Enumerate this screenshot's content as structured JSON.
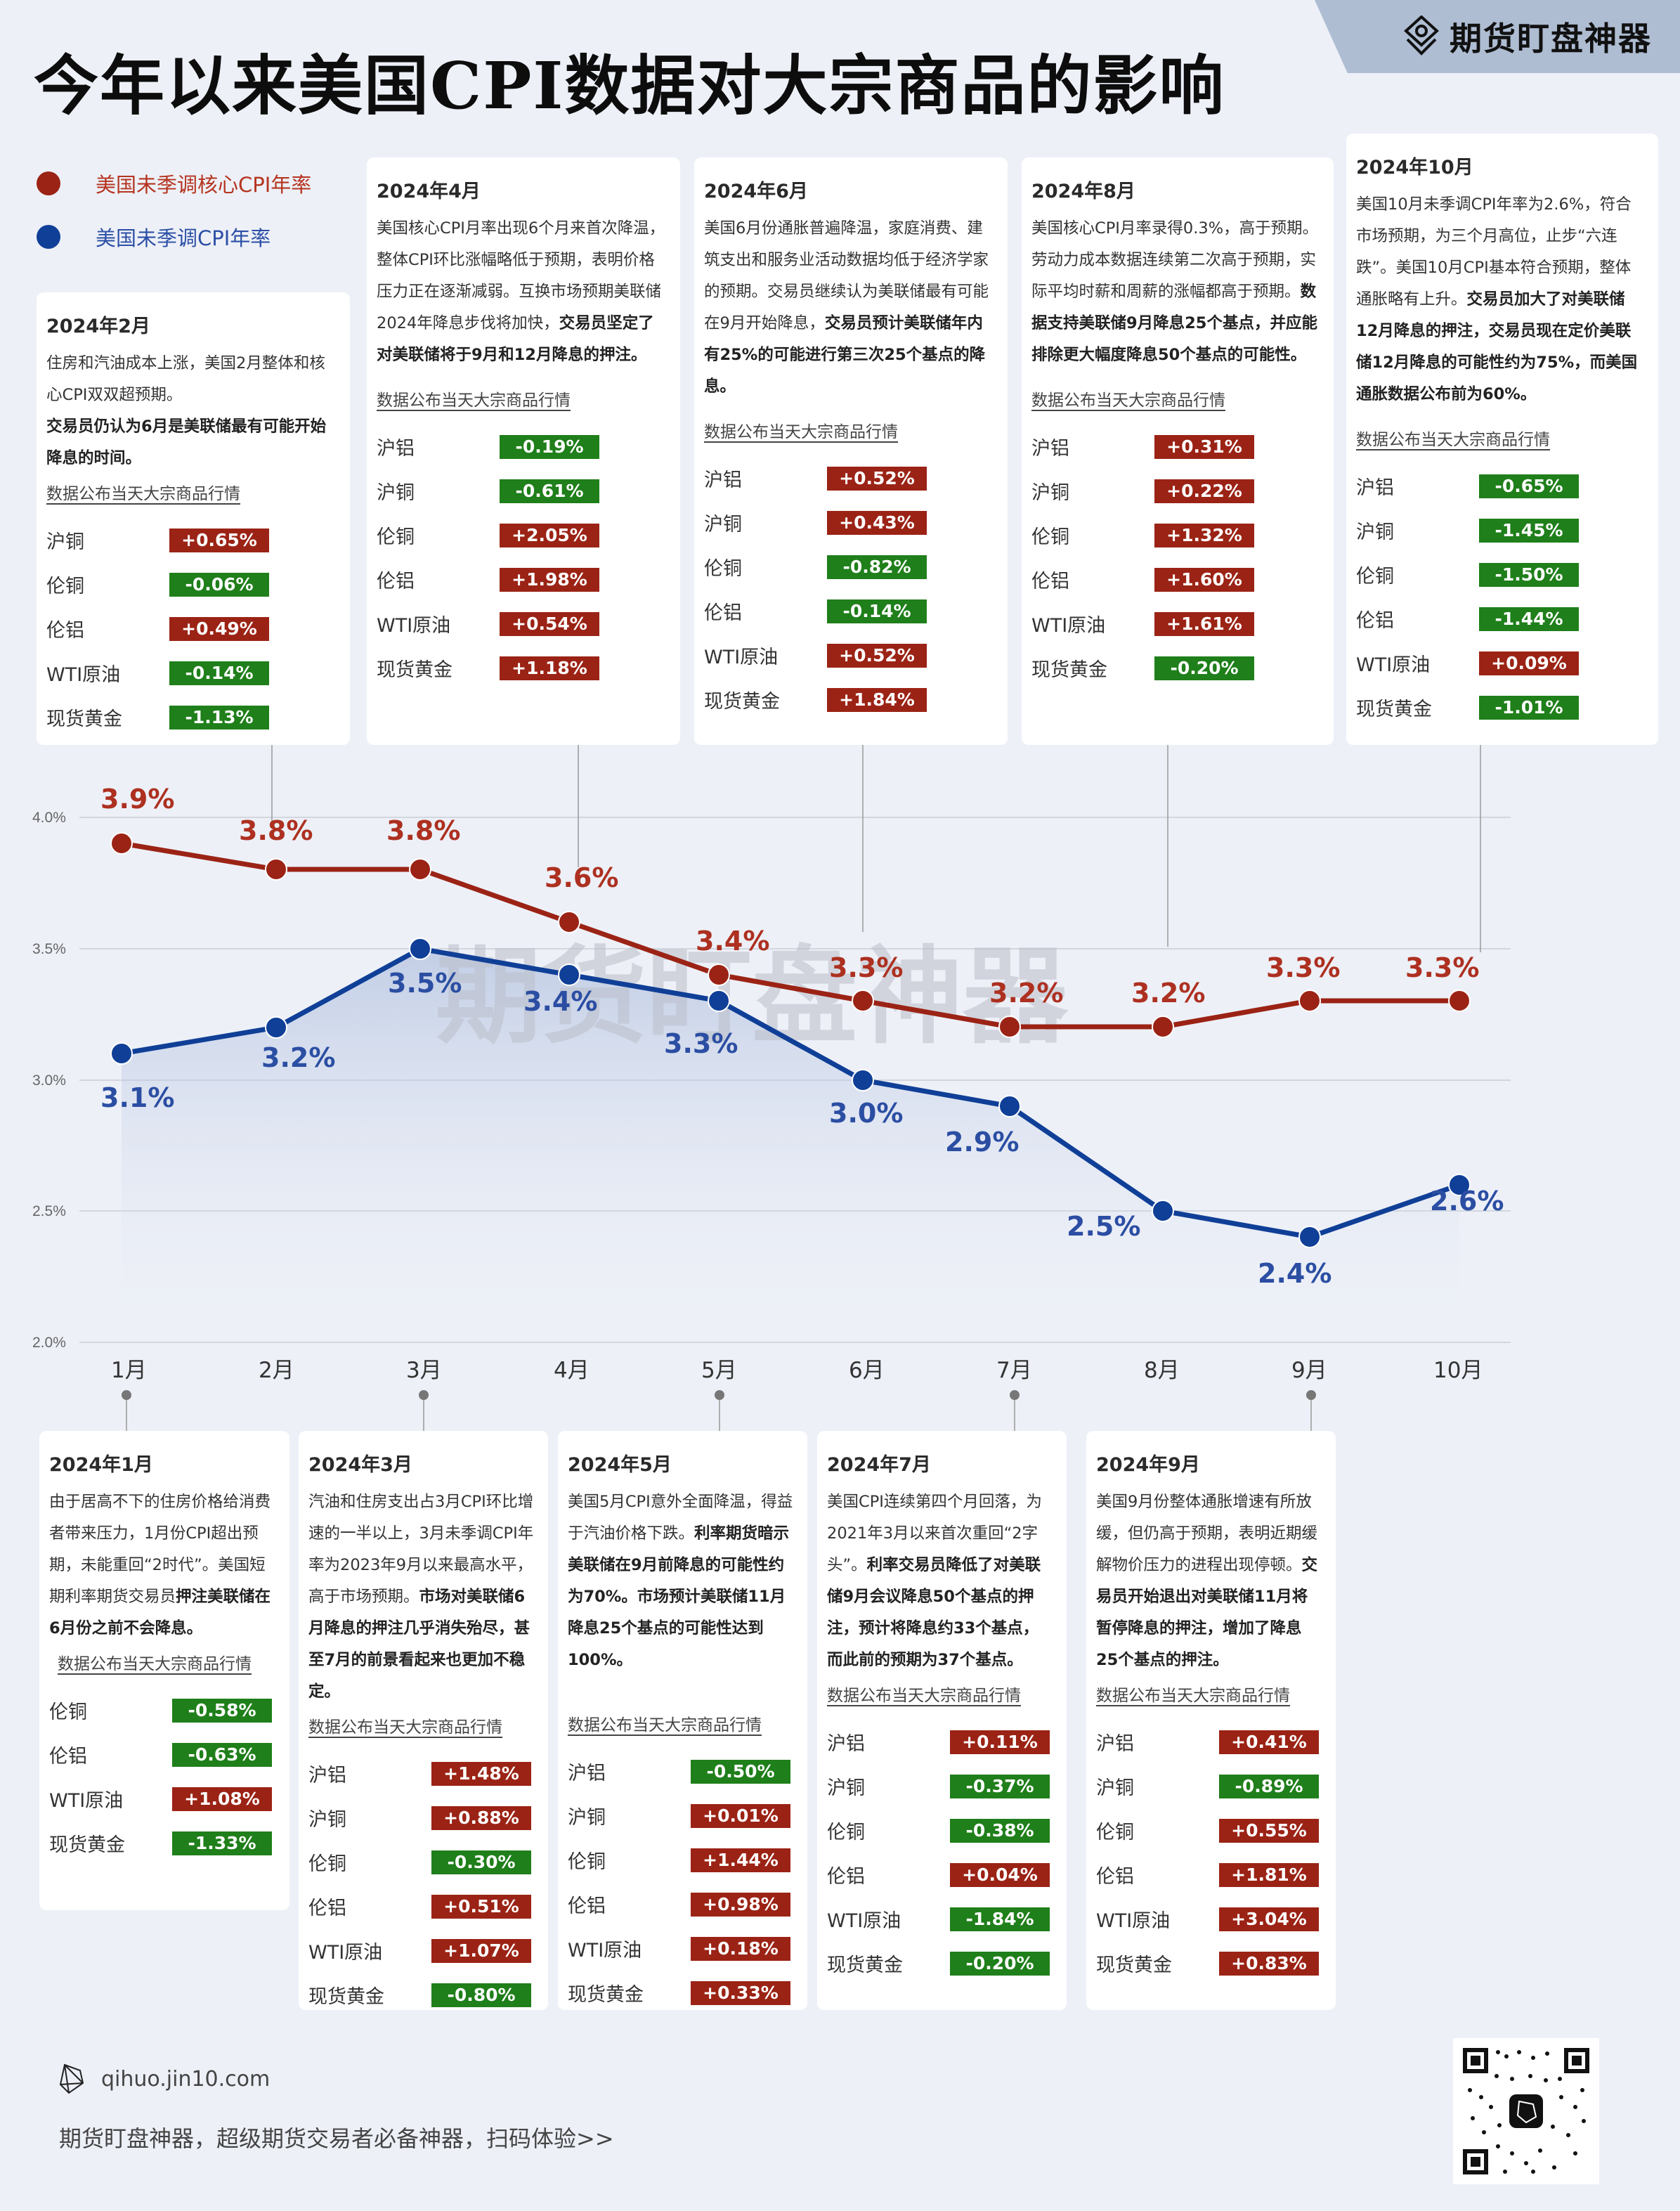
{
  "header": {
    "title": "今年以来美国CPI数据对大宗商品的影响",
    "brand": "期货盯盘神器"
  },
  "legend": [
    {
      "label": "美国未季调核心CPI年率",
      "color": "#9b2315"
    },
    {
      "label": "美国未季调CPI年率",
      "color": "#0f3f97"
    }
  ],
  "colors": {
    "up": "#9b2315",
    "down": "#1f7f1a",
    "core": "#9b2315",
    "headline": "#0f3f97"
  },
  "section_label": "数据公布当天大宗商品行情",
  "cards": {
    "jan": {
      "title": "2024年1月",
      "text": "由于居高不下的住房价格给消费者带来压力，1月份CPI超出预期，未能重回“2时代”。美国短期利率期货交易员",
      "bold": "押注美联储在6月份之前不会降息。",
      "rows": [
        {
          "name": "伦铜",
          "value": "-0.58%"
        },
        {
          "name": "伦铝",
          "value": "-0.63%"
        },
        {
          "name": "WTI原油",
          "value": "+1.08%"
        },
        {
          "name": "现货黄金",
          "value": "-1.33%"
        }
      ]
    },
    "feb": {
      "title": "2024年2月",
      "text": "住房和汽油成本上涨，美国2月整体和核心CPI双双超预期。",
      "bold": "交易员仍认为6月是美联储最有可能开始降息的时间。",
      "rows": [
        {
          "name": "沪铜",
          "value": "+0.65%",
          "trend": "down"
        },
        {
          "name": "伦铜",
          "value": "-0.06%"
        },
        {
          "name": "伦铝",
          "value": "+0.49%"
        },
        {
          "name": "WTI原油",
          "value": "-0.14%"
        },
        {
          "name": "现货黄金",
          "value": "-1.13%"
        }
      ]
    },
    "mar": {
      "title": "2024年3月",
      "text": "汽油和住房支出占3月CPI环比增速的一半以上，3月未季调CPI年率为2023年9月以来最高水平，高于市场预期。",
      "bold": "市场对美联储6月降息的押注几乎消失殆尽，甚至7月的前景看起来也更加不稳定。",
      "rows": [
        {
          "name": "沪铝",
          "value": "+1.48%"
        },
        {
          "name": "沪铜",
          "value": "+0.88%"
        },
        {
          "name": "伦铜",
          "value": "-0.30%"
        },
        {
          "name": "伦铝",
          "value": "+0.51%"
        },
        {
          "name": "WTI原油",
          "value": "+1.07%"
        },
        {
          "name": "现货黄金",
          "value": "-0.80%"
        }
      ]
    },
    "apr": {
      "title": "2024年4月",
      "text": "美国核心CPI月率出现6个月来首次降温，整体CPI环比涨幅略低于预期，表明价格压力正在逐渐减弱。互换市场预期美联储2024年降息步伐将加快，",
      "bold": "交易员坚定了对美联储将于9月和12月降息的押注。",
      "rows": [
        {
          "name": "沪铝",
          "value": "-0.19%"
        },
        {
          "name": "沪铜",
          "value": "-0.61%"
        },
        {
          "name": "伦铜",
          "value": "+2.05%"
        },
        {
          "name": "伦铝",
          "value": "+1.98%"
        },
        {
          "name": "WTI原油",
          "value": "+0.54%"
        },
        {
          "name": "现货黄金",
          "value": "+1.18%"
        }
      ]
    },
    "may": {
      "title": "2024年5月",
      "text": "美国5月CPI意外全面降温，得益于汽油价格下跌。",
      "bold": "利率期货暗示美联储在9月前降息的可能性约为70%。市场预计美联储11月降息25个基点的可能性达到100%。",
      "rows": [
        {
          "name": "沪铝",
          "value": "-0.50%"
        },
        {
          "name": "沪铜",
          "value": "+0.01%"
        },
        {
          "name": "伦铜",
          "value": "+1.44%"
        },
        {
          "name": "伦铝",
          "value": "+0.98%"
        },
        {
          "name": "WTI原油",
          "value": "+0.18%"
        },
        {
          "name": "现货黄金",
          "value": "+0.33%"
        }
      ]
    },
    "jun": {
      "title": "2024年6月",
      "text": "美国6月份通胀普遍降温，家庭消费、建筑支出和服务业活动数据均低于经济学家的预期。交易员继续认为美联储最有可能在9月开始降息，",
      "bold": "交易员预计美联储年内有25%的可能进行第三次25个基点的降息。",
      "rows": [
        {
          "name": "沪铝",
          "value": "+0.52%"
        },
        {
          "name": "沪铜",
          "value": "+0.43%"
        },
        {
          "name": "伦铜",
          "value": "-0.82%"
        },
        {
          "name": "伦铝",
          "value": "-0.14%"
        },
        {
          "name": "WTI原油",
          "value": "+0.52%"
        },
        {
          "name": "现货黄金",
          "value": "+1.84%"
        }
      ]
    },
    "jul": {
      "title": "2024年7月",
      "text": "美国CPI连续第四个月回落，为2021年3月以来首次重回“2字头”。",
      "bold": "利率交易员降低了对美联储9月会议降息50个基点的押注，预计将降息约33个基点，而此前的预期为37个基点。",
      "rows": [
        {
          "name": "沪铝",
          "value": "+0.11%"
        },
        {
          "name": "沪铜",
          "value": "-0.37%"
        },
        {
          "name": "伦铜",
          "value": "-0.38%"
        },
        {
          "name": "伦铝",
          "value": "+0.04%"
        },
        {
          "name": "WTI原油",
          "value": "-1.84%"
        },
        {
          "name": "现货黄金",
          "value": "-0.20%"
        }
      ]
    },
    "aug": {
      "title": "2024年8月",
      "text": "美国核心CPI月率录得0.3%，高于预期。劳动力成本数据连续第二次高于预期，实际平均时薪和周薪的涨幅都高于预期。",
      "bold": "数据支持美联储9月降息25个基点，并应能排除更大幅度降息50个基点的可能性。",
      "rows": [
        {
          "name": "沪铝",
          "value": "+0.31%"
        },
        {
          "name": "沪铜",
          "value": "+0.22%"
        },
        {
          "name": "伦铜",
          "value": "+1.32%"
        },
        {
          "name": "伦铝",
          "value": "+1.60%"
        },
        {
          "name": "WTI原油",
          "value": "+1.61%"
        },
        {
          "name": "现货黄金",
          "value": "-0.20%"
        }
      ]
    },
    "sep": {
      "title": "2024年9月",
      "text": "美国9月份整体通胀增速有所放缓，但仍高于预期，表明近期缓解物价压力的进程出现停顿。",
      "bold": "交易员开始退出对美联储11月将暂停降息的押注，增加了降息25个基点的押注。",
      "rows": [
        {
          "name": "沪铝",
          "value": "+0.41%"
        },
        {
          "name": "沪铜",
          "value": "-0.89%"
        },
        {
          "name": "伦铜",
          "value": "+0.55%"
        },
        {
          "name": "伦铝",
          "value": "+1.81%"
        },
        {
          "name": "WTI原油",
          "value": "+3.04%"
        },
        {
          "name": "现货黄金",
          "value": "+0.83%"
        }
      ]
    },
    "oct": {
      "title": "2024年10月",
      "text": "美国10月未季调CPI年率为2.6%，符合市场预期，为三个月高位，止步“六连跌”。美国10月CPI基本符合预期，整体通胀略有上升。",
      "bold": "交易员加大了对美联储12月降息的押注，交易员现在定价美联储12月降息的可能性约为75%，而美国通胀数据公布前为60%。",
      "rows": [
        {
          "name": "沪铝",
          "value": "-0.65%"
        },
        {
          "name": "沪铜",
          "value": "-1.45%"
        },
        {
          "name": "伦铜",
          "value": "-1.50%"
        },
        {
          "name": "伦铝",
          "value": "-1.44%"
        },
        {
          "name": "WTI原油",
          "value": "+0.09%"
        },
        {
          "name": "现货黄金",
          "value": "-1.01%"
        }
      ]
    }
  },
  "chart_data": {
    "type": "line",
    "title": "今年以来美国CPI数据对大宗商品的影响",
    "categories": [
      "1月",
      "2月",
      "3月",
      "4月",
      "5月",
      "6月",
      "7月",
      "8月",
      "9月",
      "10月"
    ],
    "series": [
      {
        "name": "美国未季调核心CPI年率",
        "values": [
          3.9,
          3.8,
          3.8,
          3.6,
          3.4,
          3.3,
          3.2,
          3.2,
          3.3,
          3.3
        ],
        "color": "#9b2315"
      },
      {
        "name": "美国未季调CPI年率",
        "values": [
          3.1,
          3.2,
          3.5,
          3.4,
          3.3,
          3.0,
          2.9,
          2.5,
          2.4,
          2.6
        ],
        "color": "#0f3f97"
      }
    ],
    "yticks": [
      "2.0%",
      "2.5%",
      "3.0%",
      "3.5%",
      "4.0%"
    ],
    "ylim": [
      2.0,
      4.0
    ],
    "grid": true,
    "legend_position": "top-left",
    "xlabel": "",
    "ylabel": ""
  },
  "watermark": "期货盯盘神器",
  "footer": {
    "url": "qihuo.jin10.com",
    "slogan": "期货盯盘神器，超级期货交易者必备神器，扫码体验>>"
  }
}
